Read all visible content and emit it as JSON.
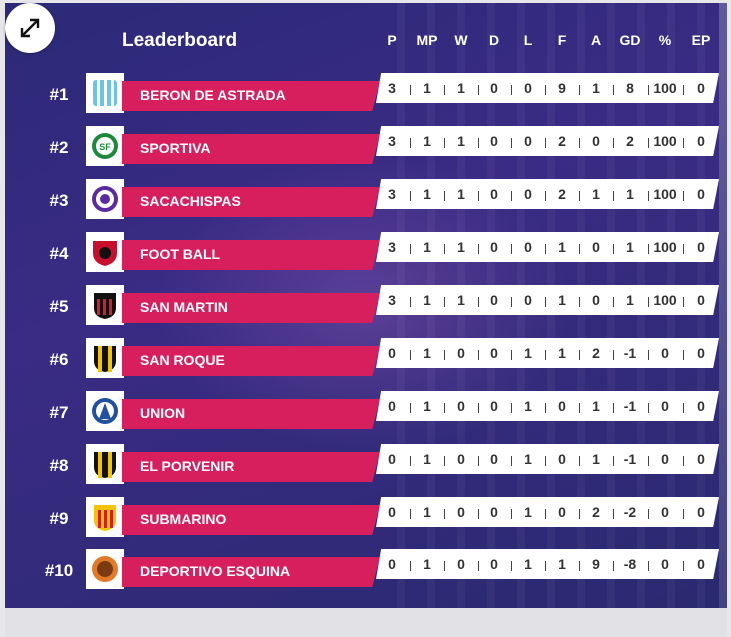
{
  "widget": {
    "title": "Leaderboard"
  },
  "columns": [
    "P",
    "MP",
    "W",
    "D",
    "L",
    "F",
    "A",
    "GD",
    "%",
    "EP"
  ],
  "rows": [
    {
      "rank": "#1",
      "team": "BERON DE ASTRADA",
      "logo": "beron-de-astrada-crest",
      "stats": [
        "3",
        "1",
        "1",
        "0",
        "0",
        "9",
        "1",
        "8",
        "100",
        "0"
      ]
    },
    {
      "rank": "#2",
      "team": "SPORTIVA",
      "logo": "sportiva-crest",
      "stats": [
        "3",
        "1",
        "1",
        "0",
        "0",
        "2",
        "0",
        "2",
        "100",
        "0"
      ]
    },
    {
      "rank": "#3",
      "team": "SACACHISPAS",
      "logo": "sacachispas-crest",
      "stats": [
        "3",
        "1",
        "1",
        "0",
        "0",
        "2",
        "1",
        "1",
        "100",
        "0"
      ]
    },
    {
      "rank": "#4",
      "team": "FOOT BALL",
      "logo": "foot-ball-crest",
      "stats": [
        "3",
        "1",
        "1",
        "0",
        "0",
        "1",
        "0",
        "1",
        "100",
        "0"
      ]
    },
    {
      "rank": "#5",
      "team": "SAN MARTIN",
      "logo": "san-martin-crest",
      "stats": [
        "3",
        "1",
        "1",
        "0",
        "0",
        "1",
        "0",
        "1",
        "100",
        "0"
      ]
    },
    {
      "rank": "#6",
      "team": "SAN ROQUE",
      "logo": "san-roque-crest",
      "stats": [
        "0",
        "1",
        "0",
        "0",
        "1",
        "1",
        "2",
        "-1",
        "0",
        "0"
      ]
    },
    {
      "rank": "#7",
      "team": "UNION",
      "logo": "union-crest",
      "stats": [
        "0",
        "1",
        "0",
        "0",
        "1",
        "0",
        "1",
        "-1",
        "0",
        "0"
      ]
    },
    {
      "rank": "#8",
      "team": "EL PORVENIR",
      "logo": "el-porvenir-crest",
      "stats": [
        "0",
        "1",
        "0",
        "0",
        "1",
        "0",
        "1",
        "-1",
        "0",
        "0"
      ]
    },
    {
      "rank": "#9",
      "team": "SUBMARINO",
      "logo": "submarino-crest",
      "stats": [
        "0",
        "1",
        "0",
        "0",
        "1",
        "0",
        "2",
        "-2",
        "0",
        "0"
      ]
    },
    {
      "rank": "#10",
      "team": "DEPORTIVO ESQUINA",
      "logo": "deportivo-esquina-crest",
      "stats": [
        "0",
        "1",
        "0",
        "0",
        "1",
        "1",
        "9",
        "-8",
        "0",
        "0"
      ]
    }
  ],
  "colors": {
    "accent": "#d81f5e",
    "background": "#2c2a78",
    "row_panel": "#ffffff"
  },
  "controls": {
    "expand_icon": "expand-arrows-icon"
  }
}
